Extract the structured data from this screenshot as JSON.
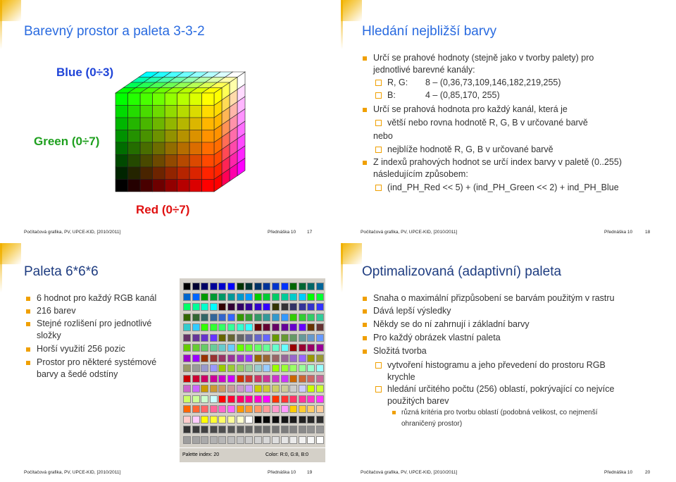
{
  "slides": [
    {
      "title": "Barevný prostor a paleta 3-3-2",
      "figure": {
        "blue": "Blue (0÷3)",
        "green": "Green (0÷7)",
        "red": "Red (0÷7)"
      },
      "footer": {
        "course": "Počítačová grafika, PV, UPCE-KID, [2010/2011]",
        "lecture": "Přednáška 10",
        "page": 17
      }
    },
    {
      "title": "Hledání nejbližší barvy",
      "bullets": [
        {
          "text": "Určí se prahové hodnoty (stejně jako v tvorby palety) pro jednotlivé barevné kanály:",
          "sub": [
            {
              "label": "R, G:",
              "text": "8 – (0,36,73,109,146,182,219,255)"
            },
            {
              "label": "B:",
              "text": "4 – (0,85,170, 255)"
            }
          ]
        },
        {
          "text": "Určí se prahová hodnota pro každý kanál, která je",
          "sub": [
            {
              "text": "větší nebo rovna hodnotě R, G, B v určované barvě"
            }
          ]
        },
        {
          "text": "nebo",
          "sub": [
            {
              "text": "nejblíže hodnotě R, G, B v určované barvě"
            }
          ]
        },
        {
          "text": "Z indexů prahových hodnot se určí index barvy v paletě (0..255) následujícím způsobem:",
          "sub": [
            {
              "text": "(ind_PH_Red << 5) + (ind_PH_Green << 2) + ind_PH_Blue"
            }
          ]
        }
      ],
      "footer": {
        "course": "Počítačová grafika, PV, UPCE-KID, [2010/2011]",
        "lecture": "Přednáška 10",
        "page": 18
      }
    },
    {
      "title": "Paleta 6*6*6",
      "bullets": [
        "6 hodnot pro každý RGB kanál",
        "216 barev",
        "Stejné rozlišení pro jednotlivé složky",
        "Horší využití 256 pozic",
        "Prostor pro některé systémové barvy a šedé odstíny"
      ],
      "figure": {
        "index": "Palette index: 20",
        "color": "Color: R:0, G:8, B:0"
      },
      "footer": {
        "course": "Počítačová grafika, PV, UPCE-KID, [2010/2011]",
        "lecture": "Přednáška 10",
        "page": 19
      }
    },
    {
      "title": "Optimalizovaná (adaptivní) paleta",
      "bullets": [
        {
          "text": "Snaha o maximální přizpůsobení se barvám použitým v rastru"
        },
        {
          "text": "Dává lepší výsledky"
        },
        {
          "text": "Někdy se do ní zahrnují i základní barvy"
        },
        {
          "text": "Pro každý obrázek vlastní paleta"
        },
        {
          "text": "Složitá tvorba",
          "sub": [
            {
              "text": "vytvoření histogramu a jeho převedení do prostoru RGB krychle"
            },
            {
              "text": "hledání určitého počtu (256) oblastí, pokrývající co nejvíce použitých barev",
              "sub": [
                {
                  "text": "různá kritéria pro tvorbu oblastí (podobná velikost, co nejmenší ohraničený prostor)"
                }
              ]
            }
          ]
        }
      ],
      "footer": {
        "course": "Počítačová grafika, PV, UPCE-KID, [2010/2011]",
        "lecture": "Přednáška 10",
        "page": 20
      }
    }
  ]
}
